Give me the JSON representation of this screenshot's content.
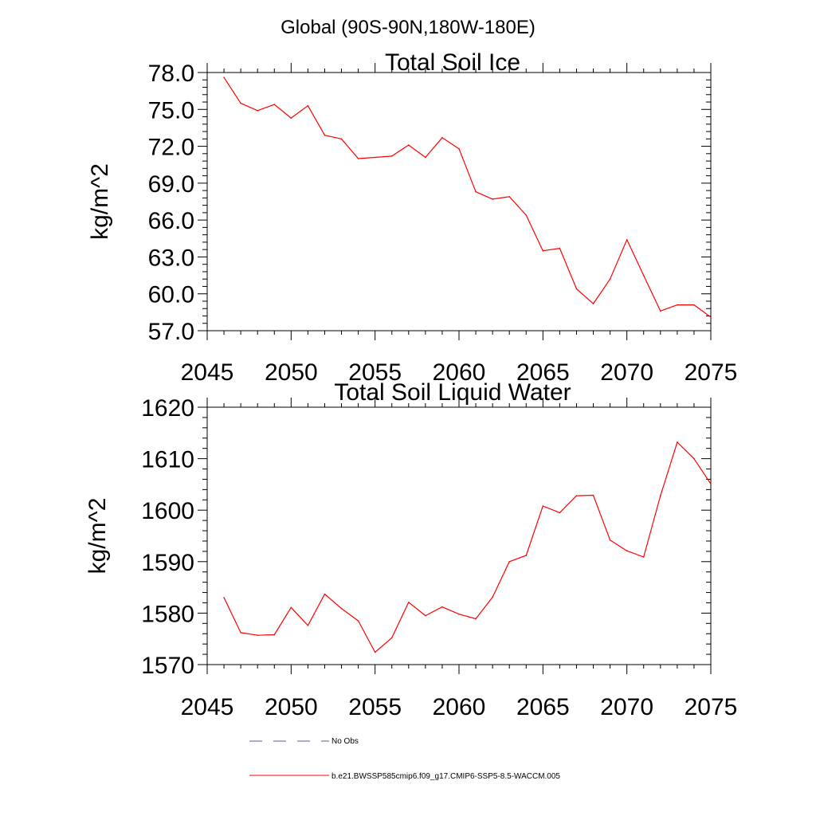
{
  "figure": {
    "suptitle": "Global (90S-90N,180W-180E)"
  },
  "chart_data": [
    {
      "type": "line",
      "title": "Total Soil Ice",
      "xlabel": "",
      "ylabel": "kg/m^2",
      "xlim": [
        2045,
        2075
      ],
      "ylim": [
        57.0,
        78.0
      ],
      "xticks": [
        2045,
        2050,
        2055,
        2060,
        2065,
        2070,
        2075
      ],
      "xtick_labels": [
        "2045",
        "2050",
        "2055",
        "2060",
        "2065",
        "2070",
        "2075"
      ],
      "yticks": [
        57.0,
        60.0,
        63.0,
        66.0,
        69.0,
        72.0,
        75.0,
        78.0
      ],
      "ytick_labels": [
        "57.0",
        "60.0",
        "63.0",
        "66.0",
        "69.0",
        "72.0",
        "75.0",
        "78.0"
      ],
      "grid": false,
      "series": [
        {
          "name": "b.e21.BWSSP585cmip6.f09_g17.CMIP6-SSP5-8.5-WACCM.005",
          "color": "#ff0000",
          "x": [
            2046,
            2047,
            2048,
            2049,
            2050,
            2051,
            2052,
            2053,
            2054,
            2055,
            2056,
            2057,
            2058,
            2059,
            2060,
            2061,
            2062,
            2063,
            2064,
            2065,
            2066,
            2067,
            2068,
            2069,
            2070,
            2071,
            2072,
            2073,
            2074,
            2075
          ],
          "y": [
            77.6,
            75.5,
            74.9,
            75.4,
            74.3,
            75.3,
            72.9,
            72.6,
            71.0,
            71.1,
            71.2,
            72.1,
            71.1,
            72.7,
            71.8,
            68.3,
            67.7,
            67.9,
            66.4,
            63.5,
            63.7,
            60.4,
            59.2,
            61.2,
            64.4,
            61.5,
            58.6,
            59.1,
            59.1,
            58.1
          ]
        }
      ]
    },
    {
      "type": "line",
      "title": "Total Soil Liquid Water",
      "xlabel": "",
      "ylabel": "kg/m^2",
      "xlim": [
        2045,
        2075
      ],
      "ylim": [
        1570,
        1620
      ],
      "xticks": [
        2045,
        2050,
        2055,
        2060,
        2065,
        2070,
        2075
      ],
      "xtick_labels": [
        "2045",
        "2050",
        "2055",
        "2060",
        "2065",
        "2070",
        "2075"
      ],
      "yticks": [
        1570,
        1580,
        1590,
        1600,
        1610,
        1620
      ],
      "ytick_labels": [
        "1570",
        "1580",
        "1590",
        "1600",
        "1610",
        "1620"
      ],
      "grid": false,
      "series": [
        {
          "name": "b.e21.BWSSP585cmip6.f09_g17.CMIP6-SSP5-8.5-WACCM.005",
          "color": "#ff0000",
          "x": [
            2046,
            2047,
            2048,
            2049,
            2050,
            2051,
            2052,
            2053,
            2054,
            2055,
            2056,
            2057,
            2058,
            2059,
            2060,
            2061,
            2062,
            2063,
            2064,
            2065,
            2066,
            2067,
            2068,
            2069,
            2070,
            2071,
            2072,
            2073,
            2074,
            2075
          ],
          "y": [
            1583.0,
            1576.2,
            1575.7,
            1575.8,
            1581.1,
            1577.6,
            1583.7,
            1580.9,
            1578.5,
            1572.4,
            1575.2,
            1582.1,
            1579.5,
            1581.2,
            1579.8,
            1578.9,
            1583.1,
            1590.0,
            1591.2,
            1600.8,
            1599.5,
            1602.8,
            1602.9,
            1594.2,
            1592.1,
            1590.9,
            1602.8,
            1613.2,
            1610.0,
            1605.1
          ]
        }
      ]
    }
  ],
  "legend": {
    "entries": [
      {
        "label": "No Obs",
        "color": "#5a5a9a",
        "style": "dashed"
      },
      {
        "label": "b.e21.BWSSP585cmip6.f09_g17.CMIP6-SSP5-8.5-WACCM.005",
        "color": "#ff0000",
        "style": "solid"
      }
    ]
  }
}
